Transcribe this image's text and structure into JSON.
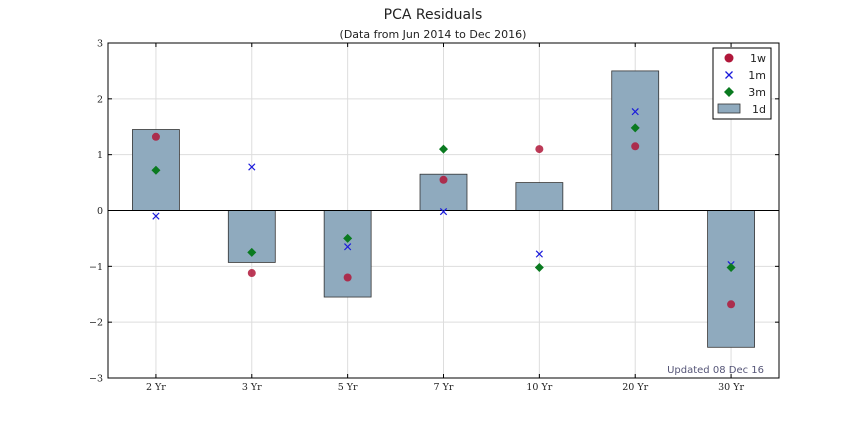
{
  "chart_data": {
    "type": "bar",
    "title": "PCA Residuals",
    "subtitle": "(Data from Jun 2014 to Dec 2016)",
    "categories": [
      "2 Yr",
      "3 Yr",
      "5 Yr",
      "7 Yr",
      "10 Yr",
      "20 Yr",
      "30 Yr"
    ],
    "ylim": [
      -3,
      3
    ],
    "yticks": [
      -3,
      -2,
      -1,
      0,
      1,
      2,
      3
    ],
    "ytick_labels": [
      "−3",
      "−2",
      "−1",
      "0",
      "1",
      "2",
      "3"
    ],
    "grid": true,
    "legend_position": "top-right",
    "bar_series": {
      "name": "1d",
      "values": [
        1.45,
        -0.93,
        -1.55,
        0.65,
        0.5,
        2.5,
        -2.45
      ],
      "color": "#8faabe"
    },
    "series": [
      {
        "name": "1w",
        "marker": "circle",
        "color": "#b0173a",
        "values": [
          1.32,
          -1.12,
          -1.2,
          0.55,
          1.1,
          1.15,
          -1.68
        ]
      },
      {
        "name": "1m",
        "marker": "x",
        "color": "#1a1adb",
        "values": [
          -0.1,
          0.78,
          -0.65,
          -0.02,
          -0.78,
          1.77,
          -0.97
        ]
      },
      {
        "name": "3m",
        "marker": "diamond",
        "color": "#0a7a20",
        "values": [
          0.72,
          -0.75,
          -0.5,
          1.1,
          -1.02,
          1.48,
          -1.02
        ]
      }
    ],
    "annotation": "Updated 08 Dec 16"
  }
}
